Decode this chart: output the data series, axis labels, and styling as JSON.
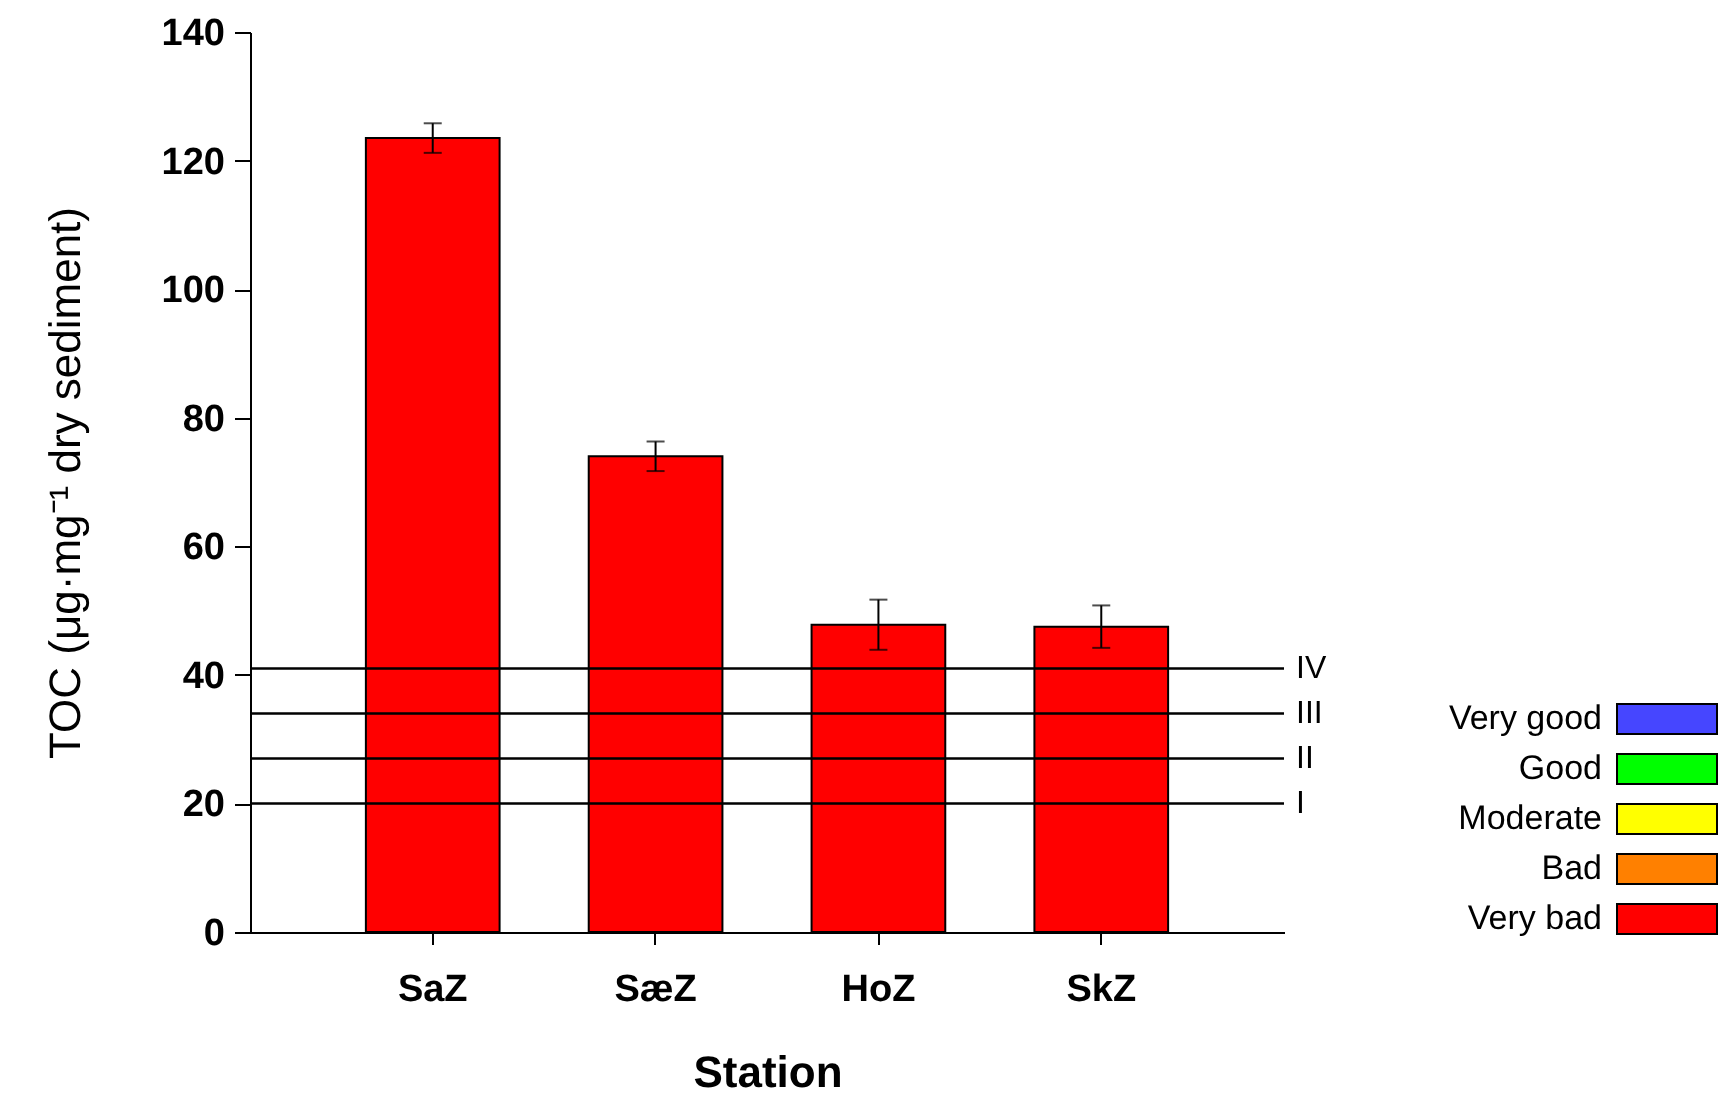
{
  "chart_data": {
    "type": "bar",
    "xlabel": "Station",
    "ylabel": "TOC (μg·mg⁻¹ dry sediment)",
    "categories": [
      "SaZ",
      "SæZ",
      "HoZ",
      "SkZ"
    ],
    "series": [
      {
        "name": "Very good",
        "color": "#4646ff",
        "values": [
          null,
          null,
          null,
          null
        ]
      },
      {
        "name": "Good",
        "color": "#00ff00",
        "values": [
          null,
          null,
          null,
          null
        ]
      },
      {
        "name": "Moderate",
        "color": "#ffff00",
        "values": [
          null,
          null,
          null,
          null
        ]
      },
      {
        "name": "Bad",
        "color": "#ff8000",
        "values": [
          null,
          null,
          null,
          null
        ]
      },
      {
        "name": "Very bad",
        "color": "#ff0000",
        "values": [
          123.5,
          74.0,
          47.8,
          47.5
        ],
        "errors": [
          2.3,
          2.3,
          3.9,
          3.3
        ]
      }
    ],
    "stacked": true,
    "ylim": [
      0,
      140
    ],
    "yticks": [
      0,
      20,
      40,
      60,
      80,
      100,
      120,
      140
    ],
    "ref_lines": [
      {
        "axis": "y",
        "value": 20,
        "label": "I"
      },
      {
        "axis": "y",
        "value": 27,
        "label": "II"
      },
      {
        "axis": "y",
        "value": 34,
        "label": "III"
      },
      {
        "axis": "y",
        "value": 41,
        "label": "IV"
      }
    ],
    "legend": "right",
    "grid": false
  }
}
